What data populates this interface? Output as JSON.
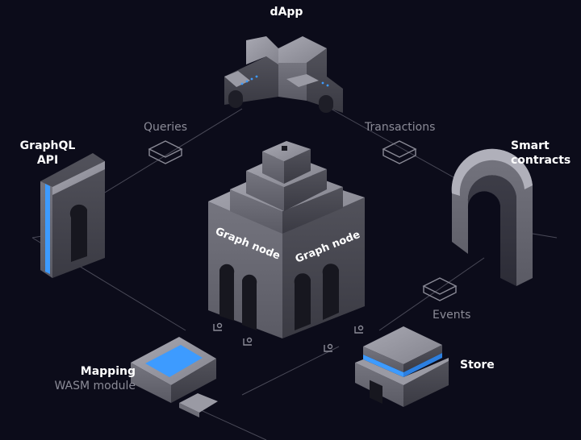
{
  "diagram": {
    "nodes": {
      "dapp": {
        "label": "dApp"
      },
      "graphql_api": {
        "label_line1": "GraphQL",
        "label_line2": "API"
      },
      "smart_contracts": {
        "label_line1": "Smart",
        "label_line2": "contracts"
      },
      "graph_node": {
        "face_left": "Graph node",
        "face_right": "Graph node"
      },
      "mapping": {
        "label_line1": "Mapping",
        "label_line2": "WASM module"
      },
      "store": {
        "label": "Store"
      }
    },
    "edges": {
      "queries": "Queries",
      "transactions": "Transactions",
      "events": "Events"
    }
  },
  "colors": {
    "background": "#0c0c1a",
    "accent_blue": "#3d9bff",
    "block_light": "#9a9aa4",
    "block_mid": "#6e6e78",
    "block_dark": "#45454e",
    "line": "#4a4a58"
  }
}
